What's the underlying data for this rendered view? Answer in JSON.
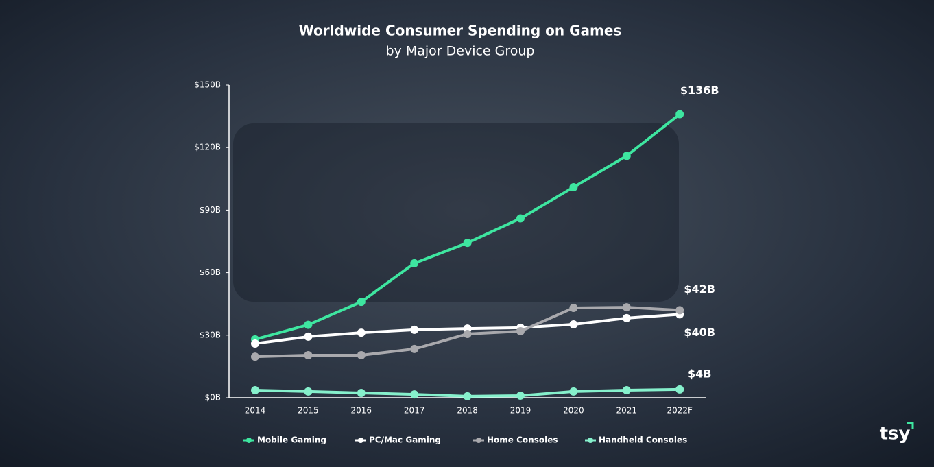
{
  "chart_data": {
    "type": "line",
    "title": "Worldwide Consumer Spending on Games",
    "subtitle": "by Major Device Group",
    "categories": [
      "2014",
      "2015",
      "2016",
      "2017",
      "2018",
      "2019",
      "2020",
      "2021",
      "2022F"
    ],
    "series": [
      {
        "name": "Mobile Gaming",
        "color": "#3ee6a0",
        "values": [
          28,
          35,
          46,
          64.5,
          74.3,
          86,
          101,
          116,
          136
        ],
        "value_labels": [
          null,
          null,
          null,
          null,
          null,
          null,
          null,
          null,
          "$136B"
        ]
      },
      {
        "name": "PC/Mac Gaming",
        "color": "#ffffff",
        "values": [
          26,
          29.3,
          31.2,
          32.6,
          33.2,
          33.6,
          35.2,
          38.2,
          40
        ],
        "value_labels": [
          null,
          null,
          null,
          null,
          null,
          null,
          null,
          null,
          "$40B"
        ]
      },
      {
        "name": "Home Consoles",
        "color": "#a9a9ad",
        "values": [
          19.7,
          20.4,
          20.4,
          23.4,
          30.6,
          31.9,
          43.1,
          43.4,
          42
        ],
        "value_labels": [
          null,
          null,
          null,
          null,
          null,
          null,
          null,
          null,
          "$42B"
        ]
      },
      {
        "name": "Handheld Consoles",
        "color": "#86f0cc",
        "values": [
          3.6,
          3,
          2.3,
          1.6,
          0.7,
          1,
          3,
          3.6,
          4
        ],
        "value_labels": [
          null,
          null,
          null,
          null,
          null,
          null,
          null,
          null,
          "$4B"
        ]
      }
    ],
    "ylim": [
      0,
      150
    ],
    "yticks": [
      {
        "value": 0,
        "label": "$0B"
      },
      {
        "value": 30,
        "label": "$30B"
      },
      {
        "value": 60,
        "label": "$60B"
      },
      {
        "value": 90,
        "label": "$90B"
      },
      {
        "value": 120,
        "label": "$120B"
      },
      {
        "value": 150,
        "label": "$150B"
      }
    ],
    "grid": false,
    "legend": "bottom"
  },
  "logo": "tsy"
}
